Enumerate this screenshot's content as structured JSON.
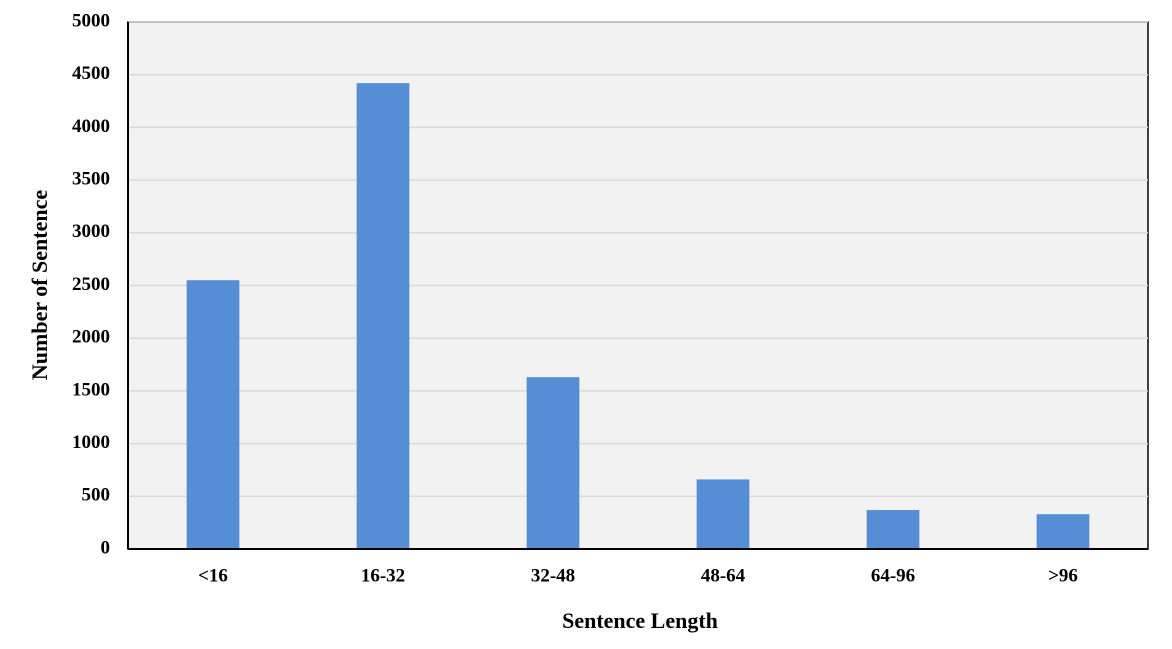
{
  "chart_data": {
    "type": "bar",
    "x_label": "Sentence Length",
    "y_label": "Number of Sentence",
    "categories": [
      "<16",
      "16-32",
      "32-48",
      "48-64",
      "64-96",
      ">96"
    ],
    "values": [
      2550,
      4420,
      1630,
      660,
      370,
      330
    ],
    "color": "#558ed5",
    "ylim": [
      0,
      5000
    ],
    "yticks": [
      0,
      500,
      1000,
      1500,
      2000,
      2500,
      3000,
      3500,
      4000,
      4500,
      5000
    ],
    "grid": true
  }
}
